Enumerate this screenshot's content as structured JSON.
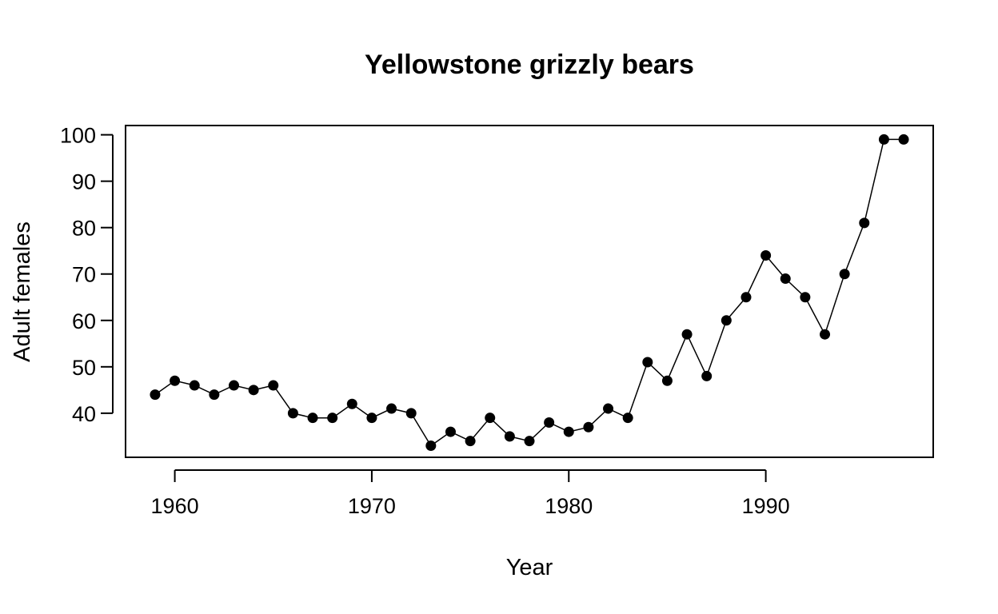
{
  "chart_data": {
    "type": "line",
    "title": "Yellowstone grizzly bears",
    "xlabel": "Year",
    "ylabel": "Adult females",
    "xlim": [
      1957.5,
      1998.5
    ],
    "ylim": [
      30.5,
      102
    ],
    "xticks": [
      1960,
      1970,
      1980,
      1990
    ],
    "yticks": [
      40,
      50,
      60,
      70,
      80,
      90,
      100
    ],
    "grid": false,
    "legend": "none",
    "colors": {
      "line": "#000000",
      "points": "#000000"
    },
    "series": [
      {
        "x": [
          1959,
          1960,
          1961,
          1962,
          1963,
          1964,
          1965,
          1966,
          1967,
          1968,
          1969,
          1970,
          1971,
          1972,
          1973,
          1974,
          1975,
          1976,
          1977,
          1978,
          1979,
          1980,
          1981,
          1982,
          1983,
          1984,
          1985,
          1986,
          1987,
          1988,
          1989,
          1990,
          1991,
          1992,
          1993,
          1994,
          1995,
          1996,
          1997
        ],
        "values": [
          44,
          47,
          46,
          44,
          46,
          45,
          46,
          40,
          39,
          39,
          42,
          39,
          41,
          40,
          33,
          36,
          34,
          39,
          35,
          34,
          38,
          36,
          37,
          41,
          39,
          51,
          47,
          57,
          48,
          60,
          65,
          74,
          69,
          65,
          57,
          70,
          81,
          99,
          99
        ]
      }
    ]
  }
}
